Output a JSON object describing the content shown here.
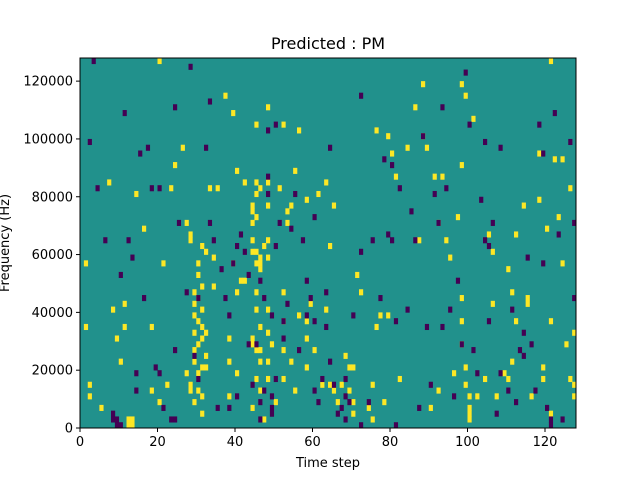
{
  "chart_data": {
    "type": "heatmap",
    "title": "Predicted : PM",
    "xlabel": "Time step",
    "ylabel": "Frequency (Hz)",
    "xlim": [
      0,
      128
    ],
    "ylim": [
      0,
      128000
    ],
    "xticks": [
      0,
      20,
      40,
      60,
      80,
      100,
      120
    ],
    "yticks": [
      0,
      20000,
      40000,
      60000,
      80000,
      100000,
      120000
    ],
    "xtick_labels": [
      "0",
      "20",
      "40",
      "60",
      "80",
      "100",
      "120"
    ],
    "ytick_labels": [
      "0",
      "20000",
      "40000",
      "60000",
      "80000",
      "100000",
      "120000"
    ],
    "grid": false,
    "colormap": "viridis",
    "colors": {
      "background": "#21918c",
      "high": "#fde725",
      "low": "#440154"
    },
    "bin_height_hz": 2000,
    "yellow_cells": [
      [
        1,
        56000
      ],
      [
        1,
        34000
      ],
      [
        2,
        14000
      ],
      [
        2,
        10000
      ],
      [
        5,
        6000
      ],
      [
        7,
        84000
      ],
      [
        8,
        40000
      ],
      [
        9,
        30000
      ],
      [
        10,
        22000
      ],
      [
        11,
        42000
      ],
      [
        11,
        34000
      ],
      [
        12,
        2000
      ],
      [
        12,
        0
      ],
      [
        13,
        2000
      ],
      [
        13,
        0
      ],
      [
        14,
        80000
      ],
      [
        16,
        68000
      ],
      [
        18,
        34000
      ],
      [
        18,
        12000
      ],
      [
        20,
        8000
      ],
      [
        20,
        126000
      ],
      [
        21,
        56000
      ],
      [
        22,
        14000
      ],
      [
        23,
        82000
      ],
      [
        24,
        90000
      ],
      [
        26,
        96000
      ],
      [
        27,
        70000
      ],
      [
        27,
        18000
      ],
      [
        28,
        66000
      ],
      [
        28,
        64000
      ],
      [
        28,
        14000
      ],
      [
        28,
        12000
      ],
      [
        29,
        46000
      ],
      [
        29,
        42000
      ],
      [
        29,
        38000
      ],
      [
        29,
        32000
      ],
      [
        29,
        26000
      ],
      [
        29,
        8000
      ],
      [
        29,
        22000
      ],
      [
        30,
        56000
      ],
      [
        30,
        52000
      ],
      [
        30,
        44000
      ],
      [
        30,
        36000
      ],
      [
        30,
        28000
      ],
      [
        30,
        18000
      ],
      [
        30,
        12000
      ],
      [
        31,
        62000
      ],
      [
        31,
        48000
      ],
      [
        31,
        40000
      ],
      [
        31,
        34000
      ],
      [
        31,
        30000
      ],
      [
        31,
        20000
      ],
      [
        31,
        10000
      ],
      [
        31,
        4000
      ],
      [
        32,
        60000
      ],
      [
        32,
        32000
      ],
      [
        32,
        24000
      ],
      [
        33,
        82000
      ],
      [
        34,
        58000
      ],
      [
        34,
        48000
      ],
      [
        35,
        82000
      ],
      [
        37,
        114000
      ],
      [
        38,
        30000
      ],
      [
        38,
        22000
      ],
      [
        38,
        10000
      ],
      [
        39,
        108000
      ],
      [
        39,
        56000
      ],
      [
        40,
        88000
      ],
      [
        40,
        46000
      ],
      [
        40,
        18000
      ],
      [
        41,
        50000
      ],
      [
        42,
        84000
      ],
      [
        42,
        50000
      ],
      [
        44,
        76000
      ],
      [
        44,
        74000
      ],
      [
        44,
        70000
      ],
      [
        44,
        64000
      ],
      [
        44,
        60000
      ],
      [
        44,
        30000
      ],
      [
        44,
        28000
      ],
      [
        44,
        6000
      ],
      [
        45,
        104000
      ],
      [
        45,
        84000
      ],
      [
        45,
        80000
      ],
      [
        45,
        72000
      ],
      [
        45,
        60000
      ],
      [
        45,
        56000
      ],
      [
        45,
        46000
      ],
      [
        45,
        40000
      ],
      [
        45,
        26000
      ],
      [
        45,
        16000
      ],
      [
        46,
        82000
      ],
      [
        46,
        58000
      ],
      [
        46,
        56000
      ],
      [
        46,
        54000
      ],
      [
        46,
        34000
      ],
      [
        46,
        26000
      ],
      [
        46,
        22000
      ],
      [
        46,
        12000
      ],
      [
        47,
        62000
      ],
      [
        47,
        2000
      ],
      [
        48,
        110000
      ],
      [
        48,
        84000
      ],
      [
        48,
        76000
      ],
      [
        48,
        64000
      ],
      [
        48,
        58000
      ],
      [
        48,
        40000
      ],
      [
        48,
        32000
      ],
      [
        48,
        22000
      ],
      [
        48,
        16000
      ],
      [
        49,
        28000
      ],
      [
        50,
        8000
      ],
      [
        51,
        82000
      ],
      [
        52,
        104000
      ],
      [
        52,
        46000
      ],
      [
        52,
        36000
      ],
      [
        52,
        26000
      ],
      [
        52,
        16000
      ],
      [
        53,
        74000
      ],
      [
        53,
        70000
      ],
      [
        54,
        76000
      ],
      [
        54,
        22000
      ],
      [
        55,
        88000
      ],
      [
        55,
        12000
      ],
      [
        56,
        102000
      ],
      [
        56,
        38000
      ],
      [
        58,
        36000
      ],
      [
        58,
        30000
      ],
      [
        58,
        20000
      ],
      [
        59,
        42000
      ],
      [
        60,
        26000
      ],
      [
        62,
        14000
      ],
      [
        63,
        40000
      ],
      [
        64,
        14000
      ],
      [
        65,
        76000
      ],
      [
        65,
        12000
      ],
      [
        66,
        8000
      ],
      [
        67,
        14000
      ],
      [
        68,
        24000
      ],
      [
        69,
        12000
      ],
      [
        70,
        4000
      ],
      [
        70,
        8000
      ],
      [
        71,
        52000
      ],
      [
        72,
        46000
      ],
      [
        74,
        6000
      ],
      [
        75,
        14000
      ],
      [
        75,
        2000
      ],
      [
        76,
        102000
      ],
      [
        76,
        34000
      ],
      [
        77,
        38000
      ],
      [
        78,
        8000
      ],
      [
        79,
        38000
      ],
      [
        79,
        100000
      ],
      [
        80,
        94000
      ],
      [
        81,
        86000
      ],
      [
        84,
        96000
      ],
      [
        86,
        110000
      ],
      [
        87,
        64000
      ],
      [
        88,
        118000
      ],
      [
        88,
        100000
      ],
      [
        89,
        96000
      ],
      [
        90,
        6000
      ],
      [
        91,
        86000
      ],
      [
        92,
        70000
      ],
      [
        93,
        86000
      ],
      [
        94,
        64000
      ],
      [
        95,
        58000
      ],
      [
        96,
        18000
      ],
      [
        97,
        72000
      ],
      [
        98,
        118000
      ],
      [
        98,
        90000
      ],
      [
        98,
        44000
      ],
      [
        98,
        36000
      ],
      [
        98,
        28000
      ],
      [
        99,
        114000
      ],
      [
        99,
        20000
      ],
      [
        99,
        14000
      ],
      [
        100,
        10000
      ],
      [
        100,
        6000
      ],
      [
        100,
        4000
      ],
      [
        100,
        2000
      ],
      [
        101,
        106000
      ],
      [
        102,
        10000
      ],
      [
        105,
        66000
      ],
      [
        106,
        60000
      ],
      [
        106,
        42000
      ],
      [
        107,
        10000
      ],
      [
        109,
        18000
      ],
      [
        110,
        16000
      ],
      [
        111,
        22000
      ],
      [
        112,
        66000
      ],
      [
        112,
        36000
      ],
      [
        114,
        76000
      ],
      [
        115,
        44000
      ],
      [
        116,
        10000
      ],
      [
        118,
        94000
      ],
      [
        118,
        78000
      ],
      [
        119,
        20000
      ],
      [
        119,
        16000
      ],
      [
        120,
        68000
      ],
      [
        121,
        36000
      ],
      [
        121,
        4000
      ],
      [
        122,
        92000
      ],
      [
        123,
        72000
      ],
      [
        124,
        92000
      ],
      [
        125,
        28000
      ],
      [
        126,
        82000
      ],
      [
        126,
        16000
      ],
      [
        127,
        32000
      ],
      [
        127,
        10000
      ],
      [
        127,
        14000
      ],
      [
        128,
        52000
      ],
      [
        124,
        56000
      ],
      [
        115,
        42000
      ],
      [
        110,
        54000
      ],
      [
        111,
        46000
      ],
      [
        104,
        16000
      ],
      [
        121,
        126000
      ],
      [
        32,
        20000
      ],
      [
        92,
        12000
      ],
      [
        82,
        16000
      ],
      [
        58,
        78000
      ],
      [
        61,
        80000
      ],
      [
        63,
        84000
      ],
      [
        64,
        62000
      ],
      [
        69,
        20000
      ],
      [
        70,
        20000
      ]
    ],
    "purple_cells": [
      [
        2,
        98000
      ],
      [
        3,
        126000
      ],
      [
        4,
        82000
      ],
      [
        6,
        64000
      ],
      [
        8,
        4000
      ],
      [
        8,
        2000
      ],
      [
        9,
        2000
      ],
      [
        9,
        0
      ],
      [
        10,
        0
      ],
      [
        10,
        52000
      ],
      [
        11,
        108000
      ],
      [
        12,
        64000
      ],
      [
        13,
        58000
      ],
      [
        14,
        12000
      ],
      [
        15,
        94000
      ],
      [
        16,
        44000
      ],
      [
        17,
        96000
      ],
      [
        18,
        82000
      ],
      [
        19,
        20000
      ],
      [
        20,
        82000
      ],
      [
        20,
        18000
      ],
      [
        21,
        6000
      ],
      [
        24,
        2000
      ],
      [
        24,
        110000
      ],
      [
        24,
        26000
      ],
      [
        25,
        70000
      ],
      [
        27,
        46000
      ],
      [
        28,
        124000
      ],
      [
        29,
        24000
      ],
      [
        30,
        44000
      ],
      [
        32,
        96000
      ],
      [
        33,
        112000
      ],
      [
        33,
        70000
      ],
      [
        34,
        64000
      ],
      [
        36,
        54000
      ],
      [
        37,
        44000
      ],
      [
        38,
        38000
      ],
      [
        38,
        6000
      ],
      [
        39,
        56000
      ],
      [
        40,
        10000
      ],
      [
        40,
        62000
      ],
      [
        41,
        66000
      ],
      [
        42,
        60000
      ],
      [
        43,
        52000
      ],
      [
        43,
        28000
      ],
      [
        44,
        14000
      ],
      [
        45,
        28000
      ],
      [
        46,
        50000
      ],
      [
        46,
        8000
      ],
      [
        46,
        2000
      ],
      [
        47,
        44000
      ],
      [
        47,
        12000
      ],
      [
        48,
        102000
      ],
      [
        48,
        86000
      ],
      [
        48,
        80000
      ],
      [
        49,
        38000
      ],
      [
        49,
        10000
      ],
      [
        49,
        4000
      ],
      [
        49,
        6000
      ],
      [
        50,
        104000
      ],
      [
        50,
        62000
      ],
      [
        50,
        16000
      ],
      [
        51,
        70000
      ],
      [
        52,
        30000
      ],
      [
        52,
        36000
      ],
      [
        53,
        42000
      ],
      [
        54,
        68000
      ],
      [
        55,
        80000
      ],
      [
        56,
        26000
      ],
      [
        57,
        64000
      ],
      [
        58,
        38000
      ],
      [
        58,
        50000
      ],
      [
        59,
        44000
      ],
      [
        60,
        12000
      ],
      [
        60,
        36000
      ],
      [
        60,
        72000
      ],
      [
        61,
        8000
      ],
      [
        62,
        16000
      ],
      [
        63,
        46000
      ],
      [
        63,
        34000
      ],
      [
        64,
        96000
      ],
      [
        64,
        22000
      ],
      [
        65,
        14000
      ],
      [
        66,
        4000
      ],
      [
        67,
        6000
      ],
      [
        68,
        2000
      ],
      [
        68,
        10000
      ],
      [
        68,
        16000
      ],
      [
        69,
        8000
      ],
      [
        70,
        38000
      ],
      [
        72,
        0
      ],
      [
        72,
        114000
      ],
      [
        72,
        60000
      ],
      [
        74,
        8000
      ],
      [
        75,
        64000
      ],
      [
        77,
        44000
      ],
      [
        78,
        92000
      ],
      [
        80,
        90000
      ],
      [
        80,
        64000
      ],
      [
        81,
        36000
      ],
      [
        82,
        82000
      ],
      [
        84,
        40000
      ],
      [
        85,
        74000
      ],
      [
        86,
        64000
      ],
      [
        87,
        6000
      ],
      [
        88,
        100000
      ],
      [
        89,
        34000
      ],
      [
        90,
        14000
      ],
      [
        91,
        80000
      ],
      [
        92,
        70000
      ],
      [
        93,
        34000
      ],
      [
        94,
        82000
      ],
      [
        95,
        40000
      ],
      [
        96,
        10000
      ],
      [
        97,
        50000
      ],
      [
        98,
        28000
      ],
      [
        99,
        122000
      ],
      [
        100,
        104000
      ],
      [
        101,
        26000
      ],
      [
        102,
        18000
      ],
      [
        104,
        98000
      ],
      [
        104,
        64000
      ],
      [
        105,
        36000
      ],
      [
        106,
        70000
      ],
      [
        107,
        4000
      ],
      [
        108,
        96000
      ],
      [
        108,
        18000
      ],
      [
        110,
        12000
      ],
      [
        111,
        40000
      ],
      [
        112,
        8000
      ],
      [
        113,
        26000
      ],
      [
        114,
        32000
      ],
      [
        114,
        24000
      ],
      [
        115,
        58000
      ],
      [
        116,
        28000
      ],
      [
        117,
        12000
      ],
      [
        118,
        104000
      ],
      [
        119,
        94000
      ],
      [
        119,
        56000
      ],
      [
        120,
        6000
      ],
      [
        121,
        2000
      ],
      [
        121,
        0
      ],
      [
        122,
        108000
      ],
      [
        123,
        66000
      ],
      [
        124,
        2000
      ],
      [
        126,
        98000
      ],
      [
        127,
        70000
      ],
      [
        127,
        44000
      ],
      [
        128,
        68000
      ],
      [
        79,
        66000
      ],
      [
        105,
        62000
      ],
      [
        81,
        0
      ],
      [
        35,
        6000
      ],
      [
        23,
        2000
      ],
      [
        14,
        18000
      ],
      [
        30,
        16000
      ],
      [
        93,
        110000
      ],
      [
        103,
        78000
      ]
    ]
  }
}
